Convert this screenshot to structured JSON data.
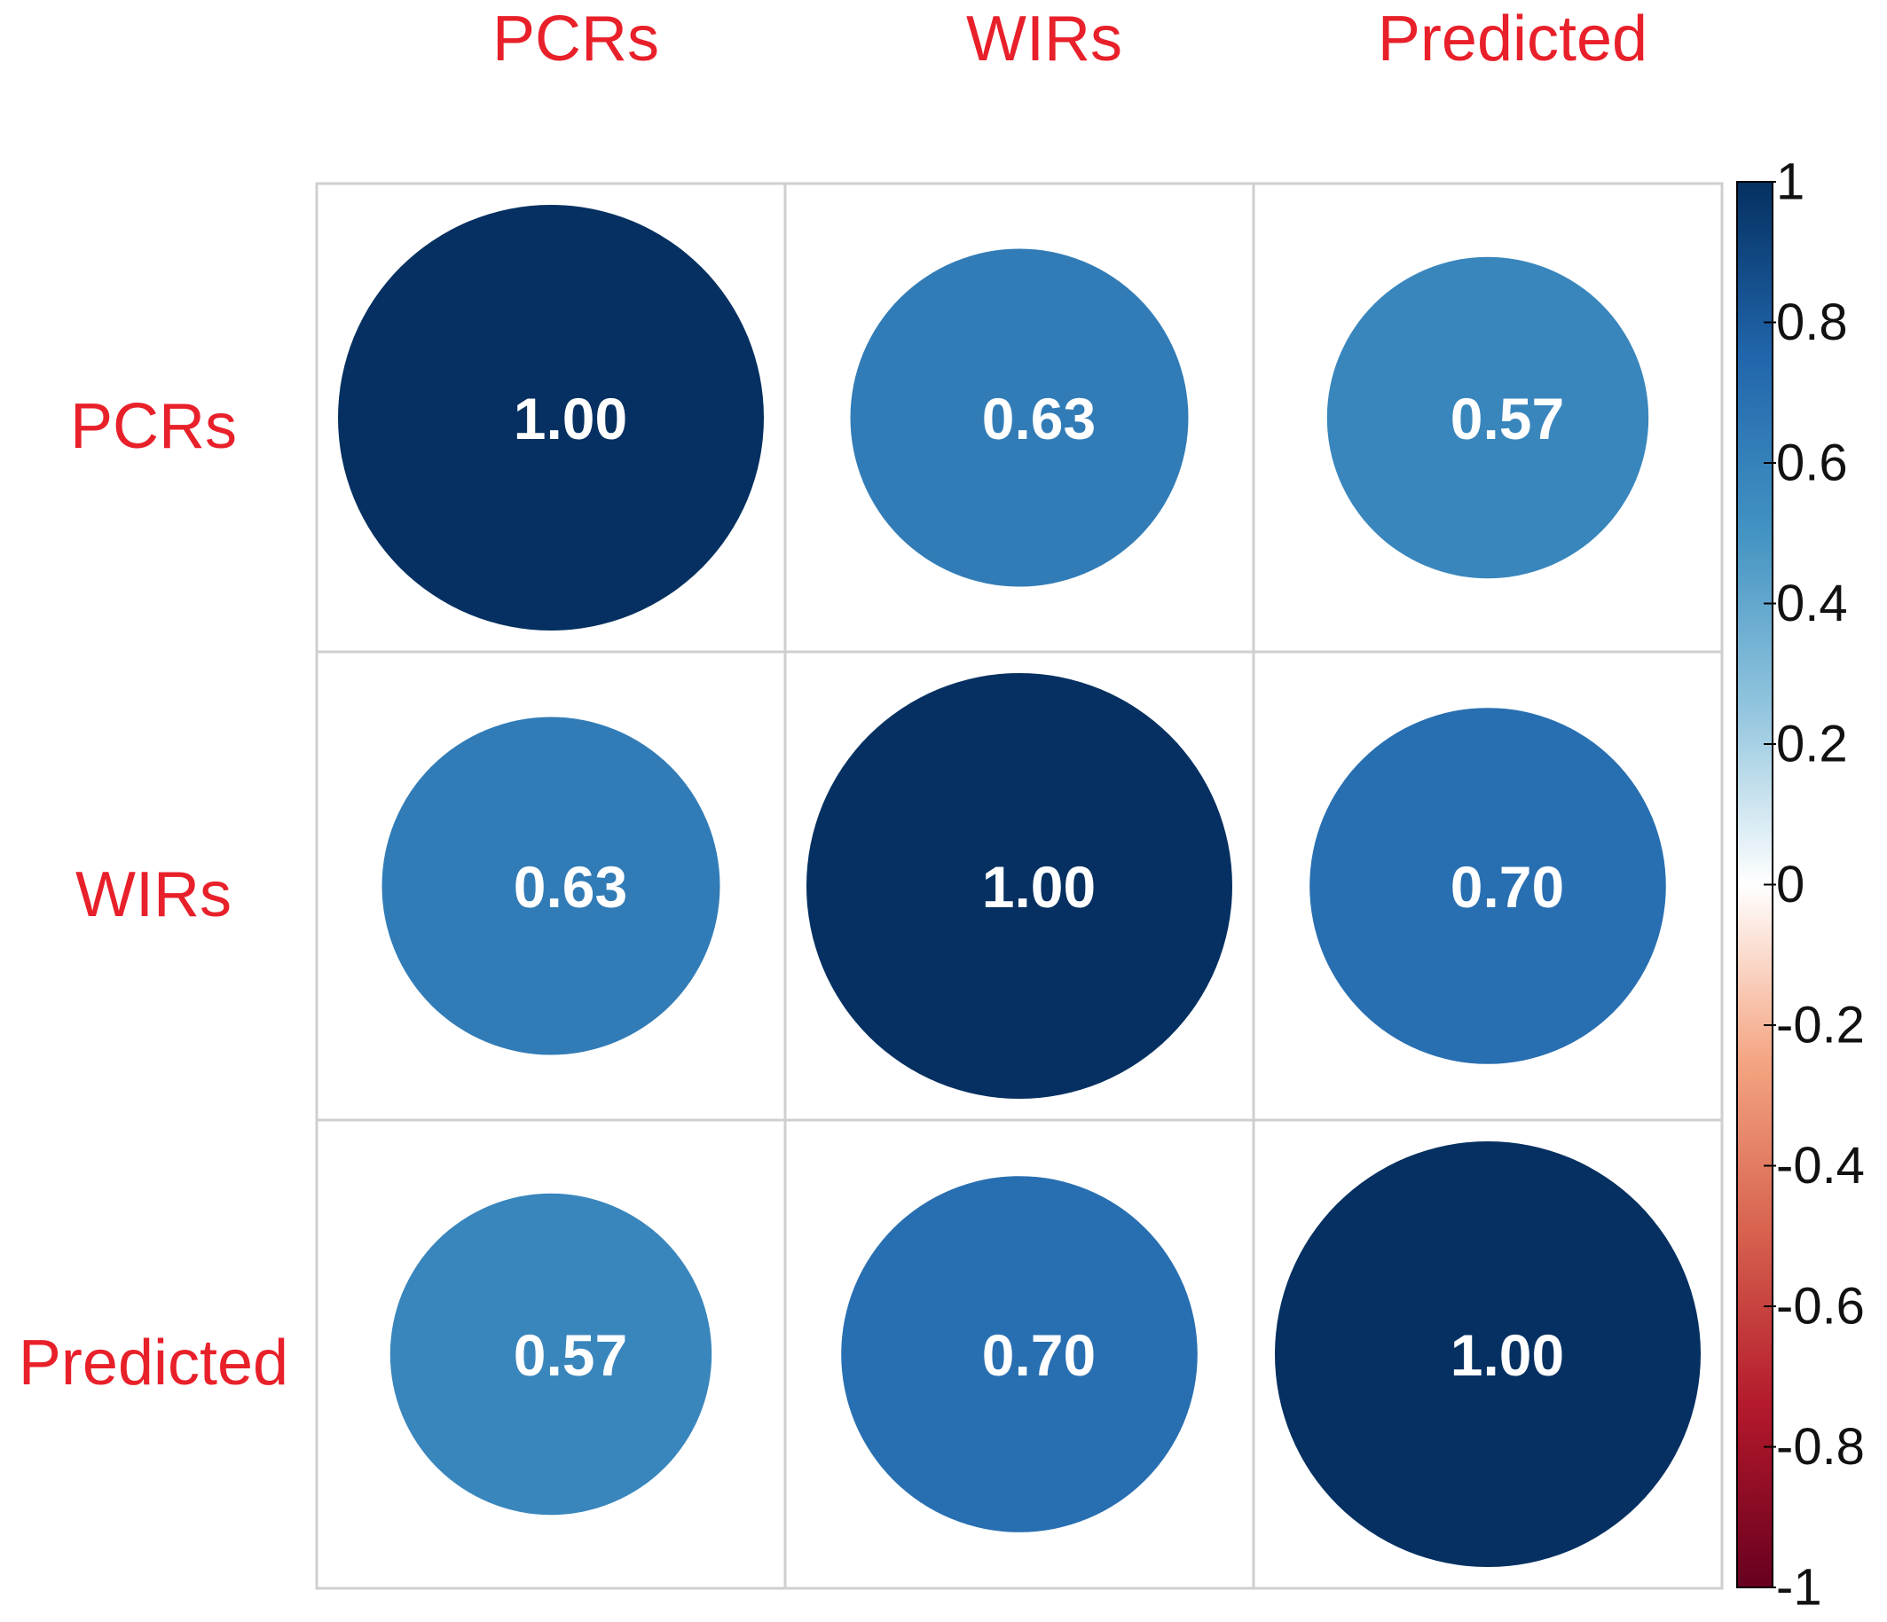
{
  "chart_data": {
    "type": "heatmap",
    "subtype": "correlation-circle-matrix",
    "variables": [
      "PCRs",
      "WIRs",
      "Predicted"
    ],
    "matrix": [
      [
        1.0,
        0.63,
        0.57
      ],
      [
        0.63,
        1.0,
        0.7
      ],
      [
        0.57,
        0.7,
        1.0
      ]
    ],
    "cell_labels": [
      [
        "1.00",
        "0.63",
        "0.57"
      ],
      [
        "0.63",
        "1.00",
        "0.70"
      ],
      [
        "0.57",
        "0.70",
        "1.00"
      ]
    ],
    "title": "",
    "xlabel": "",
    "ylabel": "",
    "value_range": [
      -1,
      1
    ],
    "grid": true,
    "colorbar": {
      "placement": "right",
      "ticks": [
        1,
        0.8,
        0.6,
        0.4,
        0.2,
        0,
        -0.2,
        -0.4,
        -0.6,
        -0.8,
        -1
      ],
      "tick_labels": [
        "1",
        "0.8",
        "0.6",
        "0.4",
        "0.2",
        "0",
        "-0.2",
        "-0.4",
        "-0.6",
        "-0.8",
        "-1"
      ],
      "color_stops": [
        {
          "value": 1,
          "color": "#053061"
        },
        {
          "value": 0.75,
          "color": "#2166AC"
        },
        {
          "value": 0.5,
          "color": "#4393C3"
        },
        {
          "value": 0.25,
          "color": "#92C5DE"
        },
        {
          "value": 0,
          "color": "#FFFFFF"
        },
        {
          "value": -0.25,
          "color": "#F4A582"
        },
        {
          "value": -0.5,
          "color": "#D6604D"
        },
        {
          "value": -0.75,
          "color": "#B2182B"
        },
        {
          "value": -1,
          "color": "#67001F"
        }
      ]
    },
    "colors": {
      "label_text": "#E8202A",
      "cell_value_text": "#FFFFFF",
      "grid_line": "#CFCFCF",
      "tick_text": "#111111"
    }
  }
}
